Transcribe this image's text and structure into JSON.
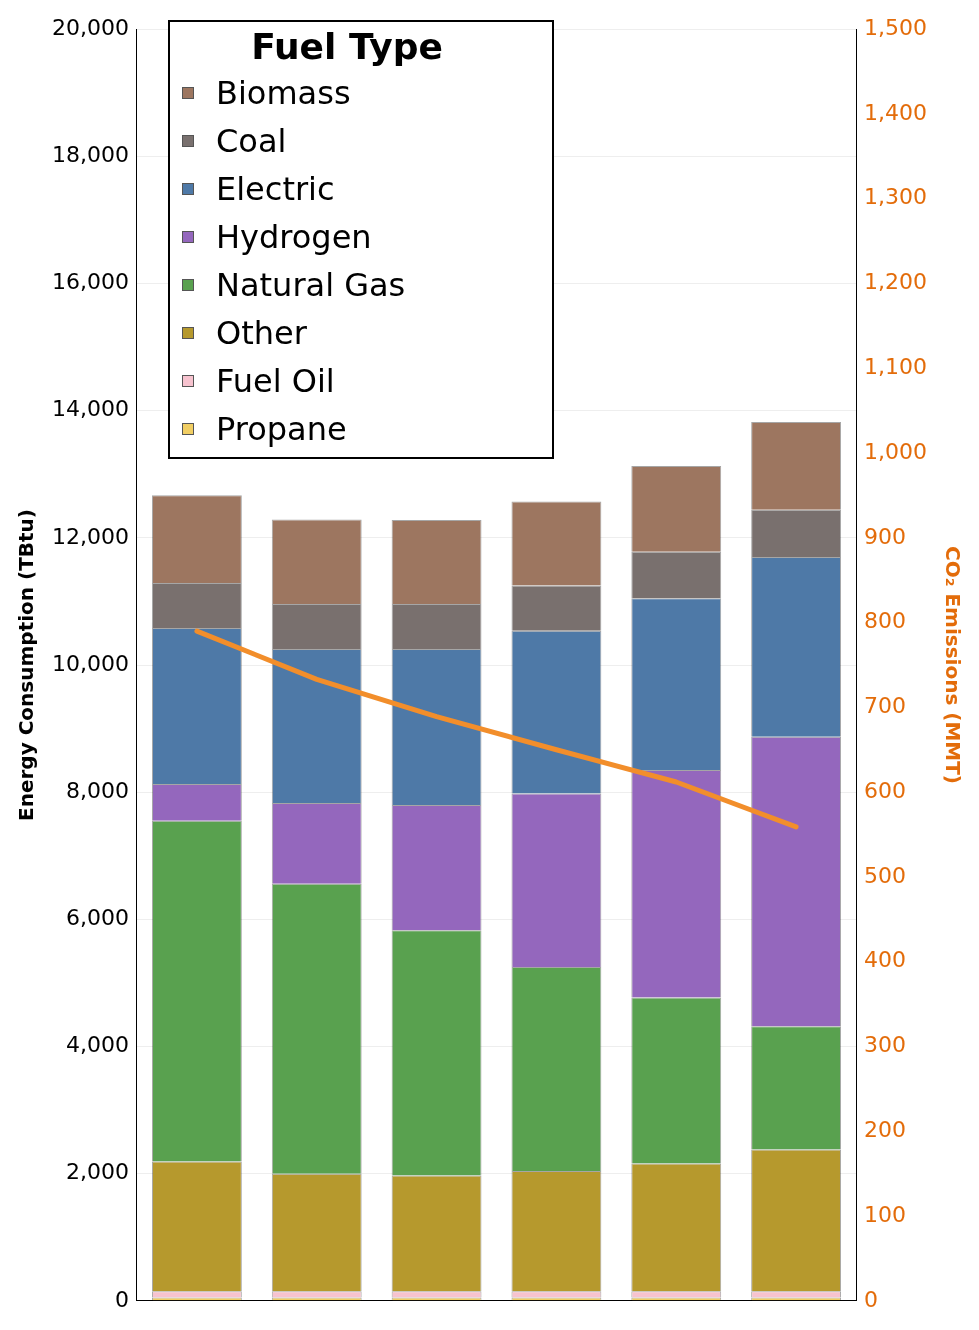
{
  "chart_data": {
    "type": "bar",
    "stacked": true,
    "ylabel": "Energy Consumption (TBtu)",
    "y2label": "CO₂ Emissions (MMT)",
    "legend_title": "Fuel Type",
    "legend": "top left",
    "grid": "y",
    "categories": [
      null,
      null,
      null,
      null,
      null,
      null
    ],
    "ylim": [
      0,
      20000
    ],
    "yticks": [
      0,
      {
        "value": 2000,
        "label": "2,000"
      },
      {
        "value": 4000,
        "label": "4,000"
      },
      {
        "value": 6000,
        "label": "6,000"
      },
      {
        "value": 8000,
        "label": "8,000"
      },
      {
        "value": 10000,
        "label": "10,000"
      },
      {
        "value": 12000,
        "label": "12,000"
      },
      {
        "value": 14000,
        "label": "14,000"
      },
      {
        "value": 16000,
        "label": "16,000"
      },
      {
        "value": 18000,
        "label": "18,000"
      },
      {
        "value": 20000,
        "label": "20,000"
      }
    ],
    "y2lim": [
      0,
      1500
    ],
    "y2ticks": [
      0,
      100,
      200,
      300,
      400,
      500,
      600,
      700,
      800,
      900,
      {
        "value": 1000,
        "label": "1,000"
      },
      {
        "value": 1100,
        "label": "1,100"
      },
      {
        "value": 1200,
        "label": "1,200"
      },
      {
        "value": 1300,
        "label": "1,300"
      },
      {
        "value": 1400,
        "label": "1,400"
      },
      {
        "value": 1500,
        "label": "1,500"
      }
    ],
    "series": [
      {
        "name": "Propane",
        "color": "#f1ce63",
        "values": [
          50,
          50,
          50,
          50,
          50,
          50
        ]
      },
      {
        "name": "Fuel Oil",
        "color": "#f7c3cf",
        "values": [
          100,
          100,
          100,
          100,
          100,
          100
        ]
      },
      {
        "name": "Other",
        "color": "#b6992d",
        "values": [
          2040,
          1850,
          1820,
          1890,
          2010,
          2230
        ]
      },
      {
        "name": "Natural Gas",
        "color": "#59a14f",
        "values": [
          5360,
          4560,
          3860,
          3210,
          2610,
          1940
        ]
      },
      {
        "name": "Hydrogen",
        "color": "#9467bd",
        "values": [
          580,
          1270,
          1970,
          2730,
          3580,
          4550
        ]
      },
      {
        "name": "Electric",
        "color": "#4e79a7",
        "values": [
          2450,
          2420,
          2450,
          2560,
          2700,
          2830
        ]
      },
      {
        "name": "Coal",
        "color": "#79706e",
        "values": [
          710,
          710,
          710,
          710,
          730,
          740
        ]
      },
      {
        "name": "Biomass",
        "color": "#9d7660",
        "values": [
          1380,
          1330,
          1320,
          1320,
          1350,
          1380
        ]
      },
      {
        "type": "line",
        "axis": "y2",
        "color": "#f28e2b",
        "values": [
          790,
          733,
          689,
          650,
          612,
          559
        ]
      }
    ]
  }
}
